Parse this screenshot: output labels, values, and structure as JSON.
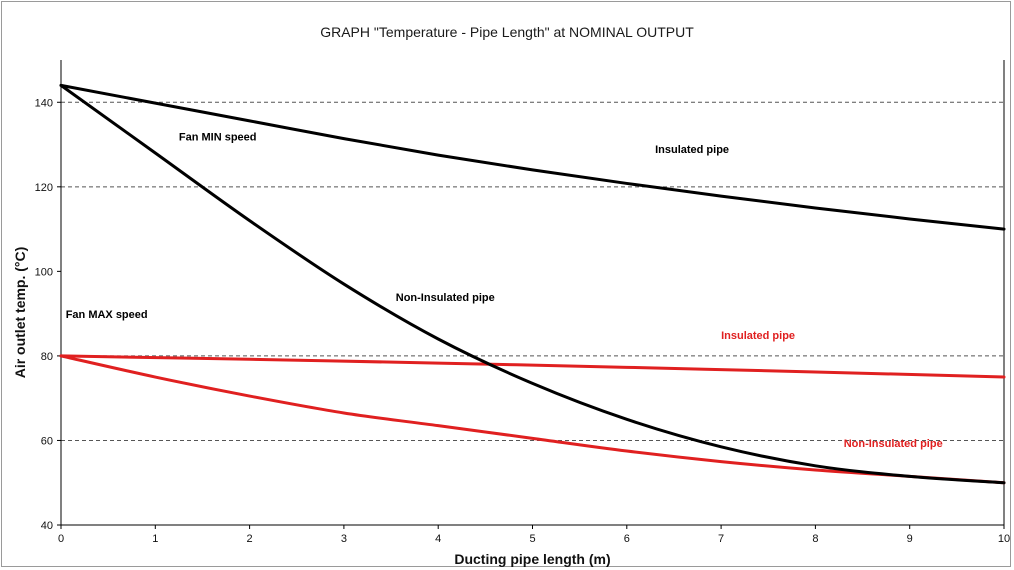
{
  "chart_data": {
    "type": "line",
    "title": "GRAPH \"Temperature - Pipe Length\" at NOMINAL OUTPUT",
    "xlabel": "Ducting pipe length (m)",
    "ylabel": "Air outlet temp. (°C)",
    "xlim": [
      0,
      10
    ],
    "ylim": [
      40,
      150
    ],
    "x_ticks": [
      0,
      1,
      2,
      3,
      4,
      5,
      6,
      7,
      8,
      9,
      10
    ],
    "y_ticks": [
      40,
      60,
      80,
      100,
      120,
      140
    ],
    "grid": {
      "horizontal_dashed": [
        60,
        80,
        120,
        140
      ]
    },
    "series": [
      {
        "name": "Insulated pipe",
        "group": "Fan MIN speed",
        "color": "#000000",
        "x": [
          0,
          1,
          2,
          3,
          4,
          5,
          6,
          7,
          8,
          9,
          10
        ],
        "y": [
          144,
          139.8,
          135.6,
          131.4,
          127.5,
          124,
          120.8,
          117.8,
          115,
          112.4,
          110
        ]
      },
      {
        "name": "Non-Insulated pipe",
        "group": "Fan MIN speed",
        "color": "#000000",
        "x": [
          0,
          1,
          2,
          3,
          4,
          5,
          6,
          7,
          8,
          9,
          10
        ],
        "y": [
          144,
          128,
          112,
          97,
          84,
          73.5,
          65,
          58.5,
          54,
          51.5,
          50
        ]
      },
      {
        "name": "Insulated pipe",
        "group": "Fan MAX speed",
        "color": "#e02020",
        "x": [
          0,
          2,
          4,
          6,
          8,
          10
        ],
        "y": [
          80,
          79.2,
          78.3,
          77.3,
          76.2,
          75
        ]
      },
      {
        "name": "Non-Insulated pipe",
        "group": "Fan MAX speed",
        "color": "#e02020",
        "x": [
          0,
          1,
          2,
          3,
          4,
          5,
          6,
          7,
          8,
          9,
          10
        ],
        "y": [
          80,
          75,
          70.5,
          66.5,
          63.5,
          60.5,
          57.5,
          55,
          53,
          51.5,
          50
        ]
      }
    ],
    "annotations": [
      {
        "id": "fan-min",
        "text": "Fan MIN speed",
        "x": 1.25,
        "y": 131,
        "color": "#000000"
      },
      {
        "id": "min-insulated",
        "text": "Insulated pipe",
        "x": 6.3,
        "y": 128,
        "color": "#000000"
      },
      {
        "id": "min-noninsulated",
        "text": "Non-Insulated pipe",
        "x": 3.55,
        "y": 93,
        "color": "#000000"
      },
      {
        "id": "fan-max",
        "text": "Fan MAX speed",
        "x": 0.05,
        "y": 89,
        "color": "#000000"
      },
      {
        "id": "max-insulated",
        "text": "Insulated pipe",
        "x": 7.0,
        "y": 84,
        "color": "#e02020"
      },
      {
        "id": "max-noninsulated",
        "text": "Non-Insulated pipe",
        "x": 8.3,
        "y": 58.5,
        "color": "#e02020"
      }
    ]
  }
}
